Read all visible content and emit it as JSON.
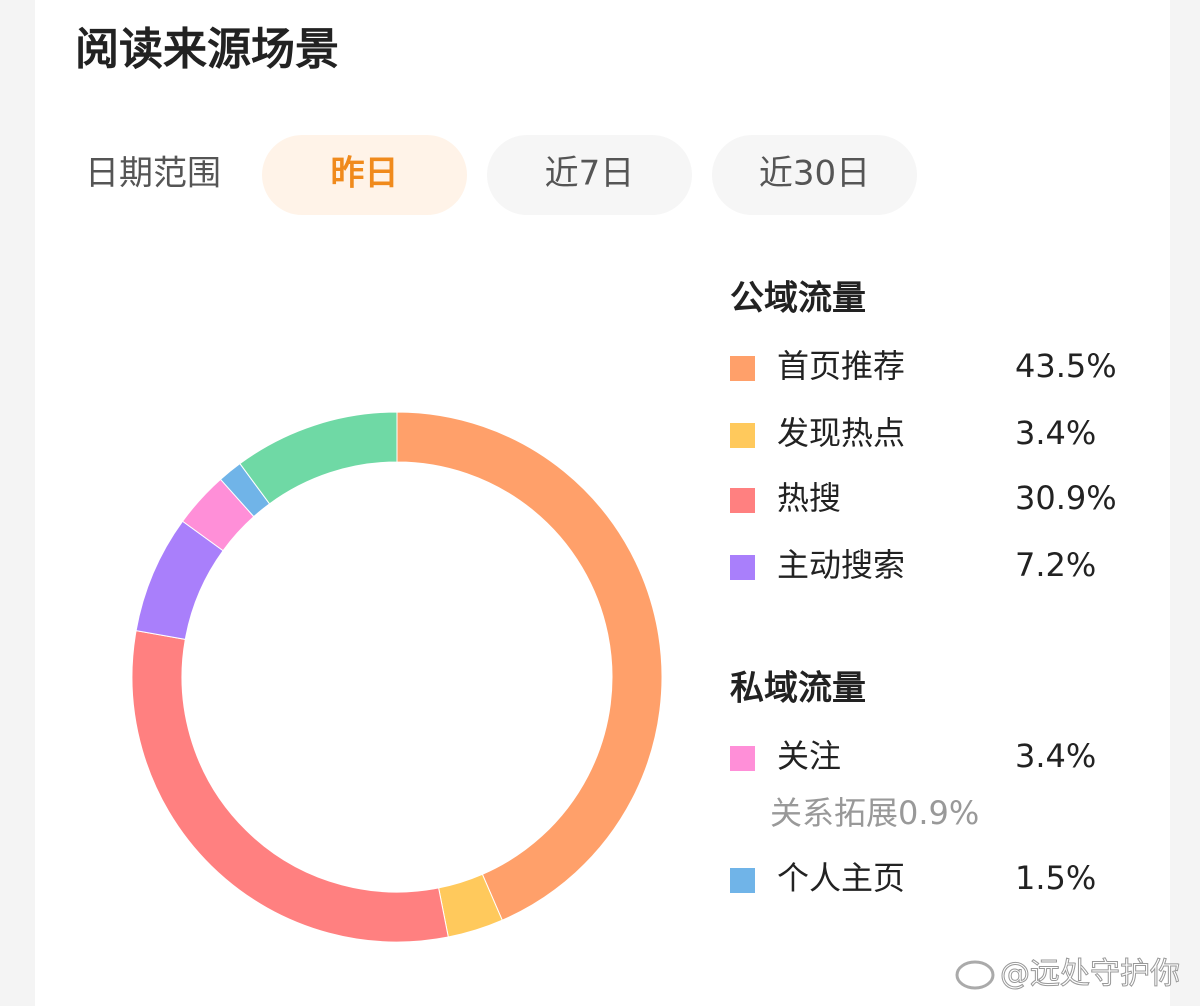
{
  "header": {
    "title": "阅读来源场景"
  },
  "filter": {
    "label": "日期范围",
    "options": [
      "昨日",
      "近7日",
      "近30日"
    ],
    "selected": 0
  },
  "chart_data": {
    "type": "donut",
    "groups": [
      {
        "title": "公域流量",
        "categories": [
          "首页推荐",
          "发现热点",
          "热搜",
          "主动搜索"
        ],
        "values": [
          43.5,
          3.4,
          30.9,
          7.2
        ],
        "value_labels": [
          "43.5%",
          "3.4%",
          "30.9%",
          "7.2%"
        ],
        "colors": [
          "#ffa06a",
          "#ffc95c",
          "#ff8080",
          "#a97ffb"
        ]
      },
      {
        "title": "私域流量",
        "categories": [
          "关注",
          "个人主页"
        ],
        "values": [
          3.4,
          1.5
        ],
        "value_labels": [
          "3.4%",
          "1.5%"
        ],
        "colors": [
          "#ff8fd8",
          "#70b4e8"
        ],
        "annotation": "关系拓展0.9%"
      },
      {
        "title": null,
        "categories": [
          null
        ],
        "values": [
          10.1
        ],
        "colors": [
          "#6fd9a5"
        ]
      }
    ]
  },
  "watermark": "@远处守护你"
}
